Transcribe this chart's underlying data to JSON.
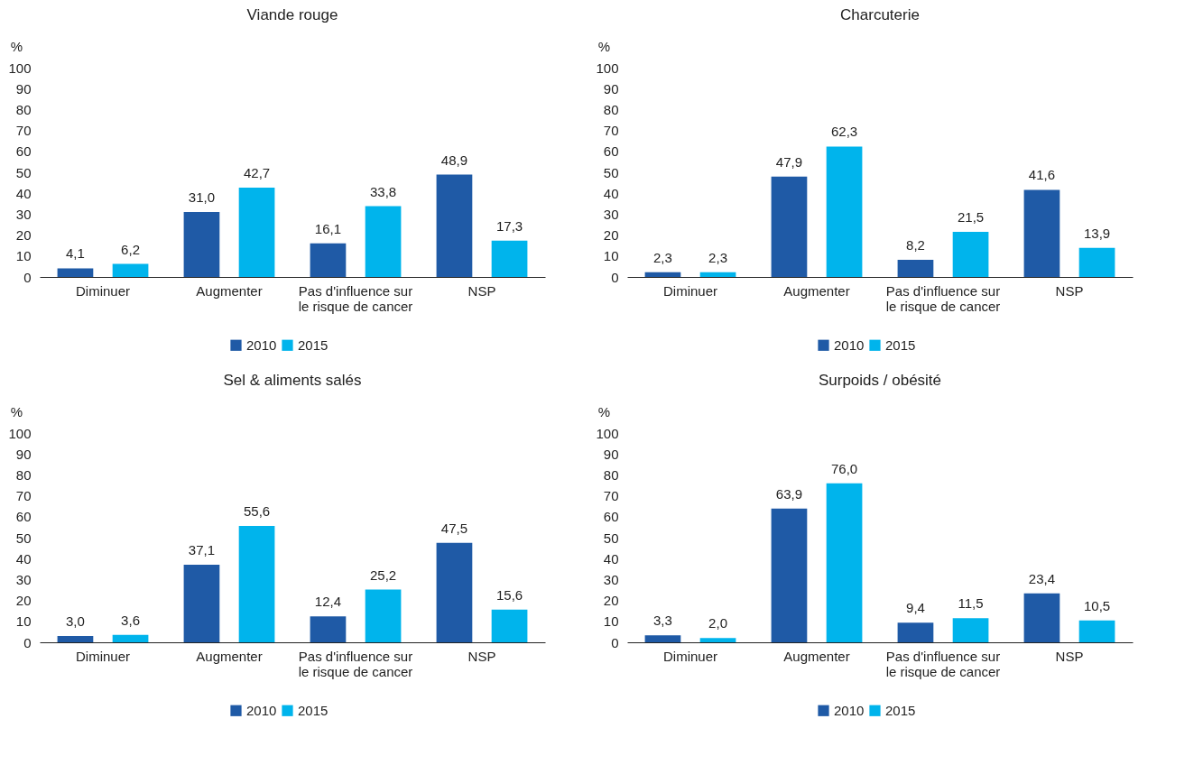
{
  "chart_data": [
    {
      "type": "bar",
      "title": "Viande rouge",
      "ylabel": "%",
      "categories": [
        "Diminuer",
        "Augmenter",
        "Pas d'influence sur le risque de cancer",
        "NSP"
      ],
      "series": [
        {
          "name": "2010",
          "color": "#1f5aa6",
          "values": [
            4.1,
            31.0,
            16.1,
            48.9
          ],
          "value_labels": [
            "4,1",
            "31,0",
            "16,1",
            "48,9"
          ]
        },
        {
          "name": "2015",
          "color": "#00b4ec",
          "values": [
            6.2,
            42.7,
            33.8,
            17.3
          ],
          "value_labels": [
            "6,2",
            "42,7",
            "33,8",
            "17,3"
          ]
        }
      ],
      "ylim": [
        0,
        100
      ],
      "yticks": [
        0,
        10,
        20,
        30,
        40,
        50,
        60,
        70,
        80,
        90,
        100
      ],
      "legend": "bottom",
      "grid": false
    },
    {
      "type": "bar",
      "title": "Charcuterie",
      "ylabel": "%",
      "categories": [
        "Diminuer",
        "Augmenter",
        "Pas d'influence sur le risque de cancer",
        "NSP"
      ],
      "series": [
        {
          "name": "2010",
          "color": "#1f5aa6",
          "values": [
            2.3,
            47.9,
            8.2,
            41.6
          ],
          "value_labels": [
            "2,3",
            "47,9",
            "8,2",
            "41,6"
          ]
        },
        {
          "name": "2015",
          "color": "#00b4ec",
          "values": [
            2.3,
            62.3,
            21.5,
            13.9
          ],
          "value_labels": [
            "2,3",
            "62,3",
            "21,5",
            "13,9"
          ]
        }
      ],
      "ylim": [
        0,
        100
      ],
      "yticks": [
        0,
        10,
        20,
        30,
        40,
        50,
        60,
        70,
        80,
        90,
        100
      ],
      "legend": "bottom",
      "grid": false
    },
    {
      "type": "bar",
      "title": "Sel & aliments salés",
      "ylabel": "%",
      "categories": [
        "Diminuer",
        "Augmenter",
        "Pas d'influence sur le risque de cancer",
        "NSP"
      ],
      "series": [
        {
          "name": "2010",
          "color": "#1f5aa6",
          "values": [
            3.0,
            37.1,
            12.4,
            47.5
          ],
          "value_labels": [
            "3,0",
            "37,1",
            "12,4",
            "47,5"
          ]
        },
        {
          "name": "2015",
          "color": "#00b4ec",
          "values": [
            3.6,
            55.6,
            25.2,
            15.6
          ],
          "value_labels": [
            "3,6",
            "55,6",
            "25,2",
            "15,6"
          ]
        }
      ],
      "ylim": [
        0,
        100
      ],
      "yticks": [
        0,
        10,
        20,
        30,
        40,
        50,
        60,
        70,
        80,
        90,
        100
      ],
      "legend": "bottom",
      "grid": false
    },
    {
      "type": "bar",
      "title": "Surpoids / obésité",
      "ylabel": "%",
      "categories": [
        "Diminuer",
        "Augmenter",
        "Pas d'influence sur le risque de cancer",
        "NSP"
      ],
      "series": [
        {
          "name": "2010",
          "color": "#1f5aa6",
          "values": [
            3.3,
            63.9,
            9.4,
            23.4
          ],
          "value_labels": [
            "3,3",
            "63,9",
            "9,4",
            "23,4"
          ]
        },
        {
          "name": "2015",
          "color": "#00b4ec",
          "values": [
            2.0,
            76.0,
            11.5,
            10.5
          ],
          "value_labels": [
            "2,0",
            "76,0",
            "11,5",
            "10,5"
          ]
        }
      ],
      "ylim": [
        0,
        100
      ],
      "yticks": [
        0,
        10,
        20,
        30,
        40,
        50,
        60,
        70,
        80,
        90,
        100
      ],
      "legend": "bottom",
      "grid": false
    }
  ]
}
